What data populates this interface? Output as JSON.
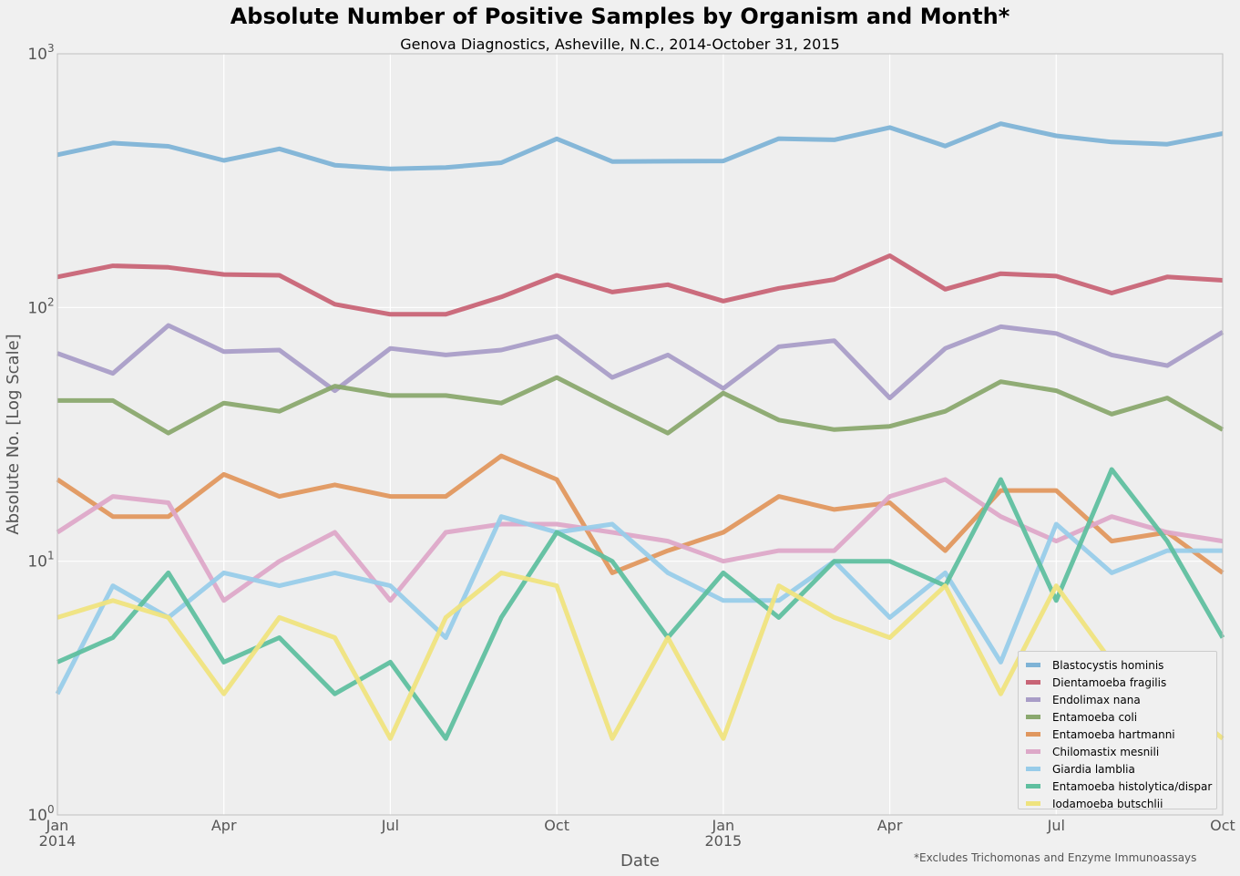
{
  "chart_data": {
    "type": "line",
    "title": "Absolute Number of Positive Samples by Organism and Month*",
    "subtitle": "Genova Diagnostics, Asheville, N.C., 2014-October 31, 2015",
    "xlabel": "Date",
    "ylabel": "Absolute No. [Log Scale]",
    "y_scale": "log",
    "ylim": [
      1,
      1000
    ],
    "y_ticks": [
      {
        "value": 1,
        "base": "10",
        "exp": "0"
      },
      {
        "value": 10,
        "base": "10",
        "exp": "1"
      },
      {
        "value": 100,
        "base": "10",
        "exp": "2"
      },
      {
        "value": 1000,
        "base": "10",
        "exp": "3"
      }
    ],
    "x_ticks": [
      {
        "index": 0,
        "label": "Jan",
        "year": "2014"
      },
      {
        "index": 3,
        "label": "Apr",
        "year": ""
      },
      {
        "index": 6,
        "label": "Jul",
        "year": ""
      },
      {
        "index": 9,
        "label": "Oct",
        "year": ""
      },
      {
        "index": 12,
        "label": "Jan",
        "year": "2015"
      },
      {
        "index": 15,
        "label": "Apr",
        "year": ""
      },
      {
        "index": 18,
        "label": "Jul",
        "year": ""
      },
      {
        "index": 21,
        "label": "Oct",
        "year": ""
      }
    ],
    "x": [
      "2014-01",
      "2014-02",
      "2014-03",
      "2014-04",
      "2014-05",
      "2014-06",
      "2014-07",
      "2014-08",
      "2014-09",
      "2014-10",
      "2014-11",
      "2014-12",
      "2015-01",
      "2015-02",
      "2015-03",
      "2015-04",
      "2015-05",
      "2015-06",
      "2015-07",
      "2015-08",
      "2015-09",
      "2015-10"
    ],
    "grid": true,
    "legend_position": "bottom-right",
    "footnote": "*Excludes Trichomonas and Enzyme Immunoassays",
    "series": [
      {
        "name": "Blastocystis hominis",
        "color": "#7eb3d6",
        "values": [
          400,
          445,
          432,
          380,
          422,
          364,
          352,
          356,
          372,
          462,
          376,
          377,
          378,
          463,
          458,
          512,
          433,
          530,
          475,
          449,
          440,
          485
        ]
      },
      {
        "name": "Dientamoeba fragilis",
        "color": "#c86476",
        "values": [
          132,
          146,
          144,
          135,
          134,
          103,
          94,
          94,
          110,
          134,
          115,
          123,
          106,
          119,
          129,
          160,
          118,
          136,
          133,
          114,
          132,
          128
        ]
      },
      {
        "name": "Endolimax nana",
        "color": "#a99dc7",
        "values": [
          66,
          55,
          85,
          67,
          68,
          47,
          69,
          65,
          68,
          77,
          53,
          65,
          48,
          70,
          74,
          44,
          69,
          84,
          79,
          65,
          59,
          80
        ]
      },
      {
        "name": "Entamoeba coli",
        "color": "#8aa86e",
        "values": [
          43,
          43,
          32,
          42,
          39,
          49,
          45,
          45,
          42,
          53,
          41,
          32,
          46,
          36,
          33,
          34,
          39,
          51,
          47,
          38,
          44,
          33
        ]
      },
      {
        "name": "Entamoeba hartmanni",
        "color": "#e0975e",
        "values": [
          21,
          15,
          15,
          22,
          18,
          20,
          18,
          18,
          26,
          21,
          9,
          11,
          13,
          18,
          16,
          17,
          11,
          19,
          19,
          12,
          13,
          9
        ]
      },
      {
        "name": "Chilomastix mesnili",
        "color": "#dda8c8",
        "values": [
          13,
          18,
          17,
          7,
          10,
          13,
          7,
          13,
          14,
          14,
          13,
          12,
          10,
          11,
          11,
          18,
          21,
          15,
          12,
          15,
          13,
          12
        ]
      },
      {
        "name": "Giardia lamblia",
        "color": "#98cce9",
        "values": [
          3,
          8,
          6,
          9,
          8,
          9,
          8,
          5,
          15,
          13,
          14,
          9,
          7,
          7,
          10,
          6,
          9,
          4,
          14,
          9,
          11,
          11
        ]
      },
      {
        "name": "Entamoeba histolytica/dispar",
        "color": "#5fbf9f",
        "values": [
          4,
          5,
          9,
          4,
          5,
          3,
          4,
          2,
          6,
          13,
          10,
          5,
          9,
          6,
          10,
          10,
          8,
          21,
          7,
          23,
          12,
          5
        ]
      },
      {
        "name": "Iodamoeba butschlii",
        "color": "#efe37e",
        "values": [
          6,
          7,
          6,
          3,
          6,
          5,
          2,
          6,
          9,
          8,
          2,
          5,
          2,
          8,
          6,
          5,
          8,
          3,
          8,
          4,
          3,
          2
        ]
      }
    ]
  }
}
